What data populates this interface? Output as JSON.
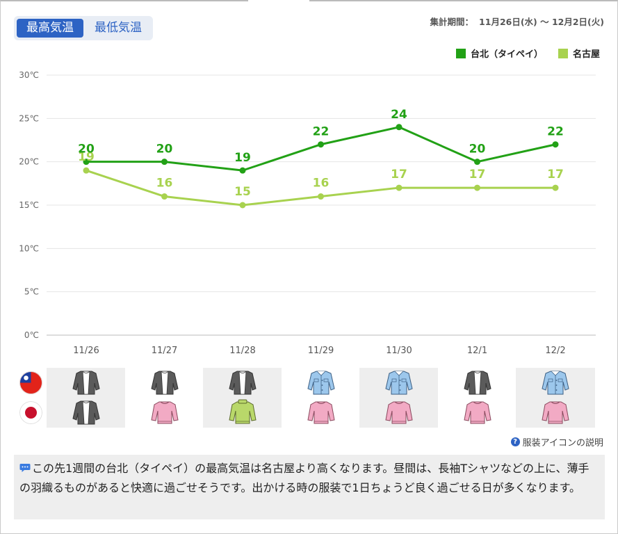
{
  "toggle": {
    "max_label": "最高気温",
    "min_label": "最低気温",
    "selected": "最高気温"
  },
  "period": {
    "label": "集計期間：",
    "value": "11月26日(水) 〜 12月2日(火)"
  },
  "chart_data": {
    "type": "line",
    "categories": [
      "11/26",
      "11/27",
      "11/28",
      "11/29",
      "11/30",
      "12/1",
      "12/2"
    ],
    "series": [
      {
        "name": "台北（タイペイ）",
        "color": "#22a116",
        "values": [
          20,
          20,
          19,
          22,
          24,
          20,
          22
        ]
      },
      {
        "name": "名古屋",
        "color": "#a8d24f",
        "values": [
          19,
          16,
          15,
          16,
          17,
          17,
          17
        ]
      }
    ],
    "ylim": [
      0,
      30
    ],
    "yticks": [
      "0℃",
      "5℃",
      "10℃",
      "15℃",
      "20℃",
      "25℃",
      "30℃"
    ],
    "grid": true,
    "legend": "top-right",
    "xlabel": "",
    "ylabel": ""
  },
  "clothing": {
    "rows": [
      {
        "flag": "taiwan-flag-icon",
        "items": [
          "cardigan-gray-icon",
          "cardigan-gray-icon",
          "cardigan-gray-icon",
          "shirt-blue-icon",
          "shirt-blue-icon",
          "cardigan-gray-icon",
          "shirt-blue-icon"
        ]
      },
      {
        "flag": "japan-flag-icon",
        "items": [
          "cardigan-gray-icon",
          "sweater-pink-icon",
          "sweater-green-icon",
          "sweater-pink-icon",
          "sweater-pink-icon",
          "sweater-pink-icon",
          "sweater-pink-icon"
        ]
      }
    ]
  },
  "help_link": "服装アイコンの説明",
  "comment": "この先1週間の台北（タイペイ）の最高気温は名古屋より高くなります。昼間は、長袖Tシャツなどの上に、薄手の羽織るものがあると快適に過ごせそうです。出かける時の服装で1日ちょうど良く過ごせる日が多くなります。"
}
